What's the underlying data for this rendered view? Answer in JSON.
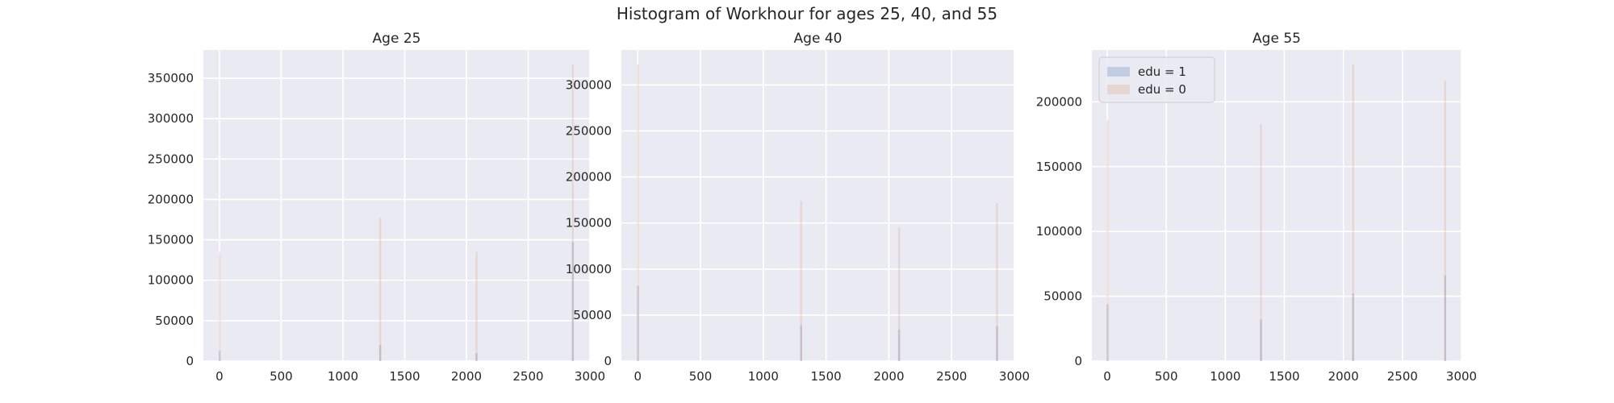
{
  "title": "Histogram of Workhour for ages 25, 40, and 55",
  "colors": {
    "edu1": "#4c72b0",
    "edu0": "#dd8452",
    "axes_bg": "#eaeaf2",
    "grid": "#ffffff"
  },
  "chart_data": [
    {
      "type": "bar",
      "title": "Age 25",
      "xlabel": "",
      "ylabel": "",
      "xlim": [
        -130,
        3000
      ],
      "ylim": [
        0,
        385000
      ],
      "xticks": [
        0,
        500,
        1000,
        1500,
        2000,
        2500,
        3000
      ],
      "yticks": [
        0,
        50000,
        100000,
        150000,
        200000,
        250000,
        300000,
        350000
      ],
      "grid": true,
      "legend": null,
      "bin_width": 12,
      "x": [
        0,
        1300,
        2080,
        2860
      ],
      "series": [
        {
          "name": "edu = 1",
          "values": [
            13000,
            20000,
            10000,
            147000
          ]
        },
        {
          "name": "edu = 0",
          "values": [
            135000,
            177000,
            135000,
            367000
          ]
        }
      ]
    },
    {
      "type": "bar",
      "title": "Age 40",
      "xlabel": "",
      "ylabel": "",
      "xlim": [
        -130,
        3000
      ],
      "ylim": [
        0,
        338000
      ],
      "xticks": [
        0,
        500,
        1000,
        1500,
        2000,
        2500,
        3000
      ],
      "yticks": [
        0,
        50000,
        100000,
        150000,
        200000,
        250000,
        300000
      ],
      "grid": true,
      "legend": null,
      "bin_width": 12,
      "x": [
        0,
        1300,
        2080,
        2860
      ],
      "series": [
        {
          "name": "edu = 1",
          "values": [
            82000,
            39000,
            34000,
            38000
          ]
        },
        {
          "name": "edu = 0",
          "values": [
            322000,
            174000,
            145000,
            172000
          ]
        }
      ]
    },
    {
      "type": "bar",
      "title": "Age 55",
      "xlabel": "",
      "ylabel": "",
      "xlim": [
        -130,
        3000
      ],
      "ylim": [
        0,
        240000
      ],
      "xticks": [
        0,
        500,
        1000,
        1500,
        2000,
        2500,
        3000
      ],
      "yticks": [
        0,
        50000,
        100000,
        150000,
        200000
      ],
      "grid": true,
      "legend": "top-left",
      "legend_entries": [
        "edu = 1",
        "edu = 0"
      ],
      "bin_width": 12,
      "x": [
        0,
        1300,
        2080,
        2860
      ],
      "series": [
        {
          "name": "edu = 1",
          "values": [
            44000,
            32000,
            52000,
            66000
          ]
        },
        {
          "name": "edu = 0",
          "values": [
            186000,
            183000,
            229000,
            216000
          ]
        }
      ]
    }
  ]
}
